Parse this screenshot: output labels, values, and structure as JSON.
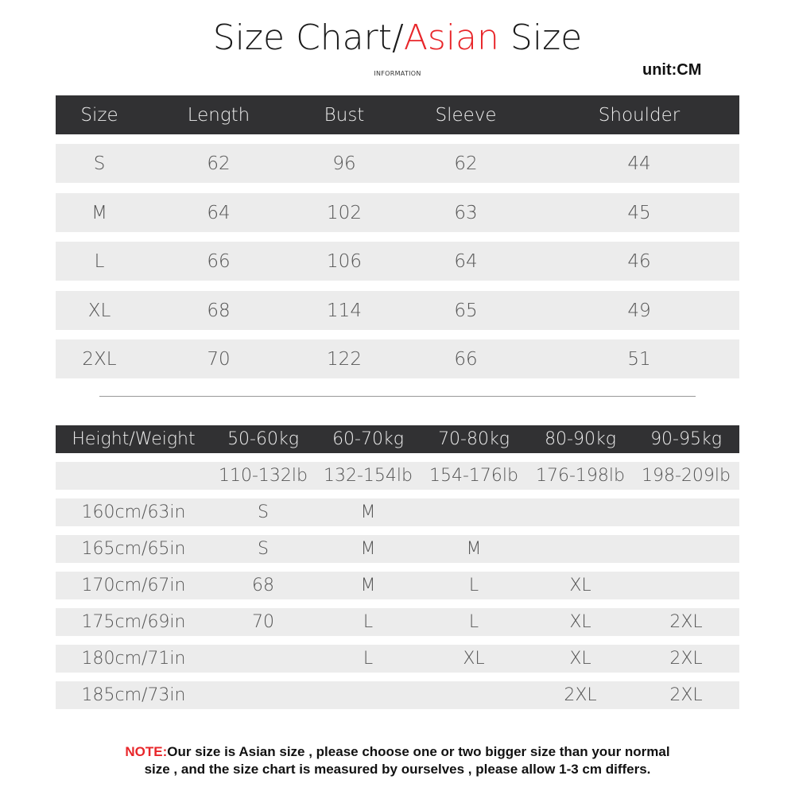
{
  "header": {
    "title_part1": "Size Chart/",
    "title_highlight": "Asian",
    "title_part2": " Size",
    "subtitle": "INFORMATION",
    "unit": "unit:CM"
  },
  "size_table": {
    "columns": [
      "Size",
      "Length",
      "Bust",
      "Sleeve",
      "Shoulder"
    ],
    "rows": [
      [
        "S",
        "62",
        "96",
        "62",
        "44"
      ],
      [
        "M",
        "64",
        "102",
        "63",
        "45"
      ],
      [
        "L",
        "66",
        "106",
        "64",
        "46"
      ],
      [
        "XL",
        "68",
        "114",
        "65",
        "49"
      ],
      [
        "2XL",
        "70",
        "122",
        "66",
        "51"
      ]
    ]
  },
  "fit_table": {
    "columns": [
      "Height/Weight",
      "50-60kg",
      "60-70kg",
      "70-80kg",
      "80-90kg",
      "90-95kg"
    ],
    "rows": [
      [
        "",
        "110-132lb",
        "132-154lb",
        "154-176lb",
        "176-198lb",
        "198-209lb"
      ],
      [
        "160cm/63in",
        "S",
        "M",
        "",
        "",
        ""
      ],
      [
        "165cm/65in",
        "S",
        "M",
        "M",
        "",
        ""
      ],
      [
        "170cm/67in",
        "68",
        "M",
        "L",
        "XL",
        ""
      ],
      [
        "175cm/69in",
        "70",
        "L",
        "L",
        "XL",
        "2XL"
      ],
      [
        "180cm/71in",
        "",
        "L",
        "XL",
        "XL",
        "2XL"
      ],
      [
        "185cm/73in",
        "",
        "",
        "",
        "2XL",
        "2XL"
      ]
    ]
  },
  "note": {
    "label": "NOTE:",
    "line1": "Our size is Asian size , please choose one or two bigger size than your normal",
    "line2": "size , and the size chart is measured by ourselves , please allow 1-3 cm differs."
  },
  "colors": {
    "accent_red": "#e8262a",
    "header_dark": "#313133",
    "row_gray": "#ececec"
  }
}
